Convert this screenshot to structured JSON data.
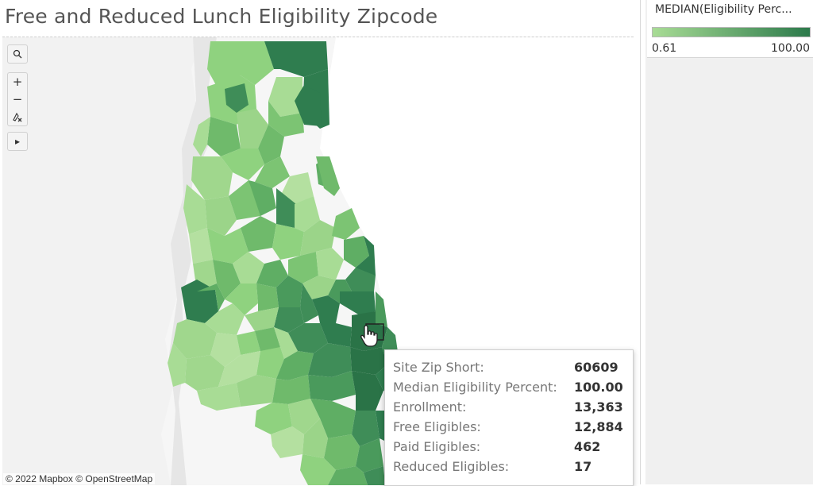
{
  "title": "Free and Reduced Lunch Eligibility Zipcode",
  "legend": {
    "title": "MEDIAN(Eligibility Perc...",
    "min_label": "0.61",
    "max_label": "100.00",
    "color_low": "#a8dc95",
    "color_high": "#2c7a4b"
  },
  "tooltip": {
    "rows": [
      {
        "label": "Site Zip Short:",
        "value": "60609"
      },
      {
        "label": "Median Eligibility Percent:",
        "value": "100.00"
      },
      {
        "label": "Enrollment:",
        "value": "13,363"
      },
      {
        "label": "Free Eligibles:",
        "value": "12,884"
      },
      {
        "label": "Paid Eligibles:",
        "value": "462"
      },
      {
        "label": "Reduced Eligibles:",
        "value": "17"
      }
    ]
  },
  "map_tools": {
    "search_icon": "search-icon",
    "zoom_in": "+",
    "zoom_out": "−",
    "reset_icon": "pin-reset-icon",
    "expand_icon": "▸"
  },
  "attribution": "© 2022 Mapbox © OpenStreetMap",
  "colors": {
    "map_background": "#f6f6f6",
    "land_texture": "#e9e9e9",
    "selection_outline": "#222222"
  }
}
